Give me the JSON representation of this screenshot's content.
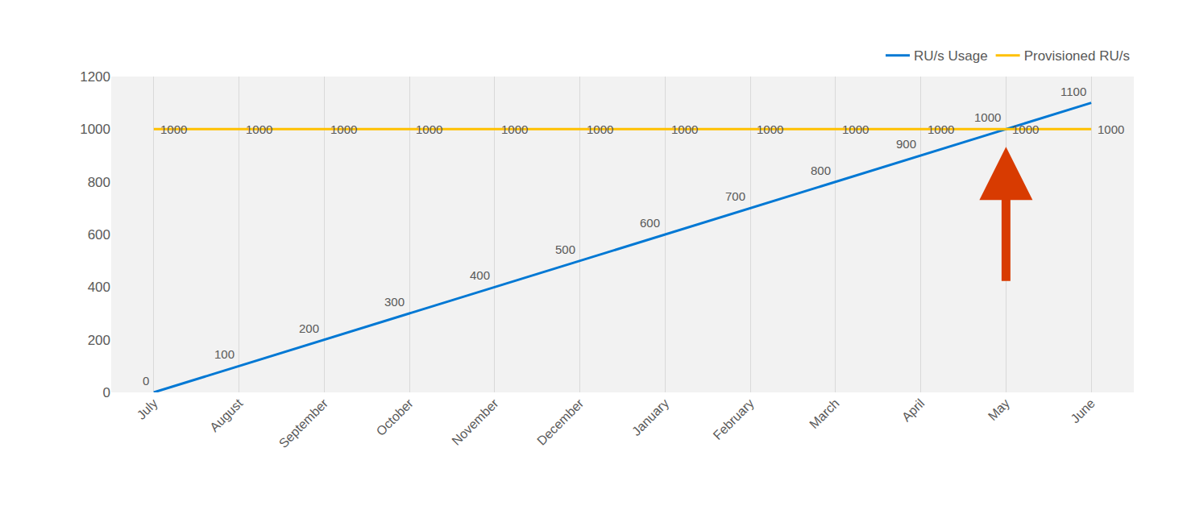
{
  "chart_data": {
    "type": "line",
    "categories": [
      "July",
      "August",
      "September",
      "October",
      "November",
      "December",
      "January",
      "February",
      "March",
      "April",
      "May",
      "June"
    ],
    "series": [
      {
        "name": "RU/s Usage",
        "color": "#0078d4",
        "values": [
          0,
          100,
          200,
          300,
          400,
          500,
          600,
          700,
          800,
          900,
          1000,
          1100
        ]
      },
      {
        "name": "Provisioned RU/s",
        "color": "#ffc000",
        "values": [
          1000,
          1000,
          1000,
          1000,
          1000,
          1000,
          1000,
          1000,
          1000,
          1000,
          1000,
          1000
        ]
      }
    ],
    "ylim": [
      0,
      1200
    ],
    "yticks": [
      0,
      200,
      400,
      600,
      800,
      1000,
      1200
    ],
    "grid": "x",
    "legend": "upper right",
    "data_labels": true
  }
}
